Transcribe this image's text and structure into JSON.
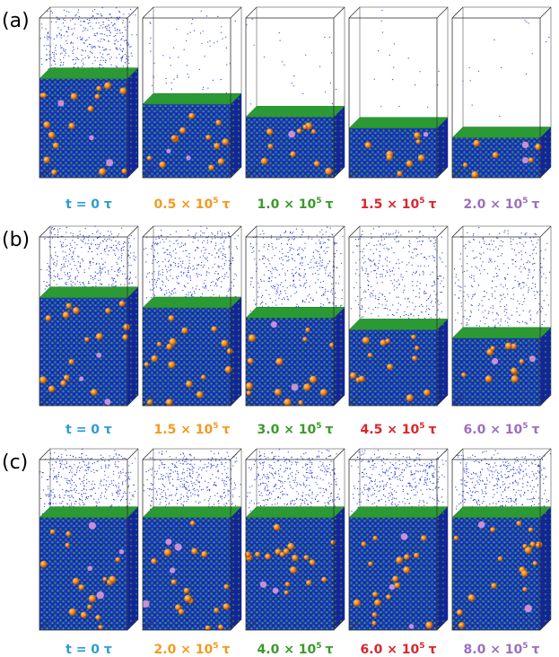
{
  "rows": [
    {
      "label": "(a)",
      "panels": [
        {
          "label": "t = 0 τ"
        },
        {
          "label": "0.5 × 10",
          "sup": "5",
          "unit": "τ"
        },
        {
          "label": "1.0 × 10",
          "sup": "5",
          "unit": "τ"
        },
        {
          "label": "1.5 × 10",
          "sup": "5",
          "unit": "τ"
        },
        {
          "label": "2.0 × 10",
          "sup": "5",
          "unit": "τ"
        }
      ]
    },
    {
      "label": "(b)",
      "panels": [
        {
          "label": "t = 0 τ"
        },
        {
          "label": "1.5 × 10",
          "sup": "5",
          "unit": "τ"
        },
        {
          "label": "3.0 × 10",
          "sup": "5",
          "unit": "τ"
        },
        {
          "label": "4.5 × 10",
          "sup": "5",
          "unit": "τ"
        },
        {
          "label": "6.0 × 10",
          "sup": "5",
          "unit": "τ"
        }
      ]
    },
    {
      "label": "(c)",
      "panels": [
        {
          "label": "t = 0 τ"
        },
        {
          "label": "2.0 × 10",
          "sup": "5",
          "unit": "τ"
        },
        {
          "label": "4.0 × 10",
          "sup": "5",
          "unit": "τ"
        },
        {
          "label": "6.0 × 10",
          "sup": "5",
          "unit": "τ"
        },
        {
          "label": "8.0 × 10",
          "sup": "5",
          "unit": "τ"
        }
      ]
    }
  ]
}
